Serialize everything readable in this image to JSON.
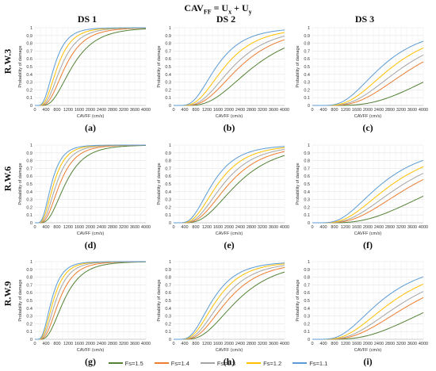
{
  "figure_title": "CAV",
  "figure_title_sub": "FF",
  "figure_title_rest": " = U",
  "figure_title_sub2": "x",
  "figure_title_rest2": " + U",
  "figure_title_sub3": "y",
  "columns": [
    "DS 1",
    "DS 2",
    "DS 3"
  ],
  "rows": [
    "R.W.3",
    "R.W.6",
    "R.W.9"
  ],
  "legend": [
    {
      "name": "Fs=1.5",
      "color": "#548235"
    },
    {
      "name": "Fs=1.4",
      "color": "#ED7D31"
    },
    {
      "name": "Fs=1.3",
      "color": "#A5A5A5"
    },
    {
      "name": "Fs=1.2",
      "color": "#FFC000"
    },
    {
      "name": "Fs=1.1",
      "color": "#5B9BD5"
    }
  ],
  "chart_data": [
    {
      "panel": "(a)",
      "type": "line",
      "xlabel": "CAVFF (cm/s)",
      "ylabel": "Probability of damage",
      "xlim": [
        0,
        4000
      ],
      "ylim": [
        0,
        1
      ],
      "xticks": [
        0,
        400,
        800,
        1200,
        1600,
        2000,
        2400,
        2800,
        3200,
        3600,
        4000
      ],
      "yticks": [
        0,
        0.1,
        0.2,
        0.3,
        0.4,
        0.5,
        0.6,
        0.7,
        0.8,
        0.9,
        1
      ],
      "grid": true,
      "series_model": "lognormal CDF, median m, dispersion beta",
      "series": [
        {
          "name": "Fs=1.5",
          "median": 1350,
          "beta": 0.5
        },
        {
          "name": "Fs=1.4",
          "median": 1100,
          "beta": 0.5
        },
        {
          "name": "Fs=1.3",
          "median": 950,
          "beta": 0.5
        },
        {
          "name": "Fs=1.2",
          "median": 820,
          "beta": 0.5
        },
        {
          "name": "Fs=1.1",
          "median": 700,
          "beta": 0.5
        }
      ]
    },
    {
      "panel": "(b)",
      "type": "line",
      "xlabel": "CAVFF (cm/s)",
      "ylabel": "Probability of damage",
      "xlim": [
        0,
        4000
      ],
      "ylim": [
        0,
        1
      ],
      "xticks": [
        0,
        400,
        800,
        1200,
        1600,
        2000,
        2400,
        2800,
        3200,
        3600,
        4000
      ],
      "yticks": [
        0,
        0.1,
        0.2,
        0.3,
        0.4,
        0.5,
        0.6,
        0.7,
        0.8,
        0.9,
        1
      ],
      "grid": true,
      "series": [
        {
          "name": "Fs=1.5",
          "median": 2900,
          "beta": 0.5
        },
        {
          "name": "Fs=1.4",
          "median": 2400,
          "beta": 0.5
        },
        {
          "name": "Fs=1.3",
          "median": 2150,
          "beta": 0.5
        },
        {
          "name": "Fs=1.2",
          "median": 1850,
          "beta": 0.5
        },
        {
          "name": "Fs=1.1",
          "median": 1550,
          "beta": 0.5
        }
      ]
    },
    {
      "panel": "(c)",
      "type": "line",
      "xlabel": "CAVFF (cm/s)",
      "ylabel": "Probability of damage",
      "xlim": [
        0,
        4000
      ],
      "ylim": [
        0,
        1
      ],
      "xticks": [
        0,
        400,
        800,
        1200,
        1600,
        2000,
        2400,
        2800,
        3200,
        3600,
        4000
      ],
      "yticks": [
        0,
        0.1,
        0.2,
        0.3,
        0.4,
        0.5,
        0.6,
        0.7,
        0.8,
        0.9,
        1
      ],
      "grid": true,
      "series": [
        {
          "name": "Fs=1.5",
          "median": 5200,
          "beta": 0.5
        },
        {
          "name": "Fs=1.4",
          "median": 3700,
          "beta": 0.5
        },
        {
          "name": "Fs=1.3",
          "median": 3300,
          "beta": 0.5
        },
        {
          "name": "Fs=1.2",
          "median": 2900,
          "beta": 0.5
        },
        {
          "name": "Fs=1.1",
          "median": 2500,
          "beta": 0.5
        }
      ]
    },
    {
      "panel": "(d)",
      "type": "line",
      "xlabel": "CAVFF (cm/s)",
      "ylabel": "Probability of damage",
      "xlim": [
        0,
        4000
      ],
      "ylim": [
        0,
        1
      ],
      "xticks": [
        0,
        400,
        800,
        1200,
        1600,
        2000,
        2400,
        2800,
        3200,
        3600,
        4000
      ],
      "yticks": [
        0,
        0.1,
        0.2,
        0.3,
        0.4,
        0.5,
        0.6,
        0.7,
        0.8,
        0.9,
        1
      ],
      "grid": true,
      "series": [
        {
          "name": "Fs=1.5",
          "median": 1100,
          "beta": 0.5
        },
        {
          "name": "Fs=1.4",
          "median": 900,
          "beta": 0.5
        },
        {
          "name": "Fs=1.3",
          "median": 780,
          "beta": 0.5
        },
        {
          "name": "Fs=1.2",
          "median": 680,
          "beta": 0.5
        },
        {
          "name": "Fs=1.1",
          "median": 600,
          "beta": 0.5
        }
      ]
    },
    {
      "panel": "(e)",
      "type": "line",
      "xlabel": "CAVFF (cm/s)",
      "ylabel": "Probability of damage",
      "xlim": [
        0,
        4000
      ],
      "ylim": [
        0,
        1
      ],
      "xticks": [
        0,
        400,
        800,
        1200,
        1600,
        2000,
        2400,
        2800,
        3200,
        3600,
        4000
      ],
      "yticks": [
        0,
        0.1,
        0.2,
        0.3,
        0.4,
        0.5,
        0.6,
        0.7,
        0.8,
        0.9,
        1
      ],
      "grid": true,
      "series": [
        {
          "name": "Fs=1.5",
          "median": 2300,
          "beta": 0.5
        },
        {
          "name": "Fs=1.4",
          "median": 2000,
          "beta": 0.5
        },
        {
          "name": "Fs=1.3",
          "median": 1800,
          "beta": 0.5
        },
        {
          "name": "Fs=1.2",
          "median": 1600,
          "beta": 0.5
        },
        {
          "name": "Fs=1.1",
          "median": 1400,
          "beta": 0.5
        }
      ]
    },
    {
      "panel": "(f)",
      "type": "line",
      "xlabel": "CAVFF (cm/s)",
      "ylabel": "Probability of damage",
      "xlim": [
        0,
        4000
      ],
      "ylim": [
        0,
        1
      ],
      "xticks": [
        0,
        400,
        800,
        1200,
        1600,
        2000,
        2400,
        2800,
        3200,
        3600,
        4000
      ],
      "yticks": [
        0,
        0.1,
        0.2,
        0.3,
        0.4,
        0.5,
        0.6,
        0.7,
        0.8,
        0.9,
        1
      ],
      "grid": true,
      "series": [
        {
          "name": "Fs=1.5",
          "median": 5000,
          "beta": 0.55
        },
        {
          "name": "Fs=1.4",
          "median": 3700,
          "beta": 0.55
        },
        {
          "name": "Fs=1.3",
          "median": 3300,
          "beta": 0.55
        },
        {
          "name": "Fs=1.2",
          "median": 2900,
          "beta": 0.55
        },
        {
          "name": "Fs=1.1",
          "median": 2500,
          "beta": 0.55
        }
      ]
    },
    {
      "panel": "(g)",
      "type": "line",
      "xlabel": "CAVFF (cm/s)",
      "ylabel": "Probability of damage",
      "xlim": [
        0,
        4000
      ],
      "ylim": [
        0,
        1
      ],
      "xticks": [
        0,
        400,
        800,
        1200,
        1600,
        2000,
        2400,
        2800,
        3200,
        3600,
        4000
      ],
      "yticks": [
        0,
        0.1,
        0.2,
        0.3,
        0.4,
        0.5,
        0.6,
        0.7,
        0.8,
        0.9,
        1
      ],
      "grid": true,
      "series": [
        {
          "name": "Fs=1.5",
          "median": 1050,
          "beta": 0.5
        },
        {
          "name": "Fs=1.4",
          "median": 880,
          "beta": 0.5
        },
        {
          "name": "Fs=1.3",
          "median": 760,
          "beta": 0.5
        },
        {
          "name": "Fs=1.2",
          "median": 670,
          "beta": 0.5
        },
        {
          "name": "Fs=1.1",
          "median": 600,
          "beta": 0.5
        }
      ]
    },
    {
      "panel": "(h)",
      "type": "line",
      "xlabel": "CAVFF (cm/s)",
      "ylabel": "Probability of damage",
      "xlim": [
        0,
        4000
      ],
      "ylim": [
        0,
        1
      ],
      "xticks": [
        0,
        400,
        800,
        1200,
        1600,
        2000,
        2400,
        2800,
        3200,
        3600,
        4000
      ],
      "yticks": [
        0,
        0.1,
        0.2,
        0.3,
        0.4,
        0.5,
        0.6,
        0.7,
        0.8,
        0.9,
        1
      ],
      "grid": true,
      "series": [
        {
          "name": "Fs=1.5",
          "median": 2300,
          "beta": 0.5
        },
        {
          "name": "Fs=1.4",
          "median": 1950,
          "beta": 0.5
        },
        {
          "name": "Fs=1.3",
          "median": 1750,
          "beta": 0.5
        },
        {
          "name": "Fs=1.2",
          "median": 1550,
          "beta": 0.5
        },
        {
          "name": "Fs=1.1",
          "median": 1400,
          "beta": 0.5
        }
      ]
    },
    {
      "panel": "(i)",
      "type": "line",
      "xlabel": "CAVFF (cm/s)",
      "ylabel": "Probability of damage",
      "xlim": [
        0,
        4000
      ],
      "ylim": [
        0,
        1
      ],
      "xticks": [
        0,
        400,
        800,
        1200,
        1600,
        2000,
        2400,
        2800,
        3200,
        3600,
        4000
      ],
      "yticks": [
        0,
        0.1,
        0.2,
        0.3,
        0.4,
        0.5,
        0.6,
        0.7,
        0.8,
        0.9,
        1
      ],
      "grid": true,
      "series": [
        {
          "name": "Fs=1.5",
          "median": 5000,
          "beta": 0.55
        },
        {
          "name": "Fs=1.4",
          "median": 3800,
          "beta": 0.55
        },
        {
          "name": "Fs=1.3",
          "median": 3400,
          "beta": 0.55
        },
        {
          "name": "Fs=1.2",
          "median": 2950,
          "beta": 0.55
        },
        {
          "name": "Fs=1.1",
          "median": 2500,
          "beta": 0.55
        }
      ]
    }
  ]
}
